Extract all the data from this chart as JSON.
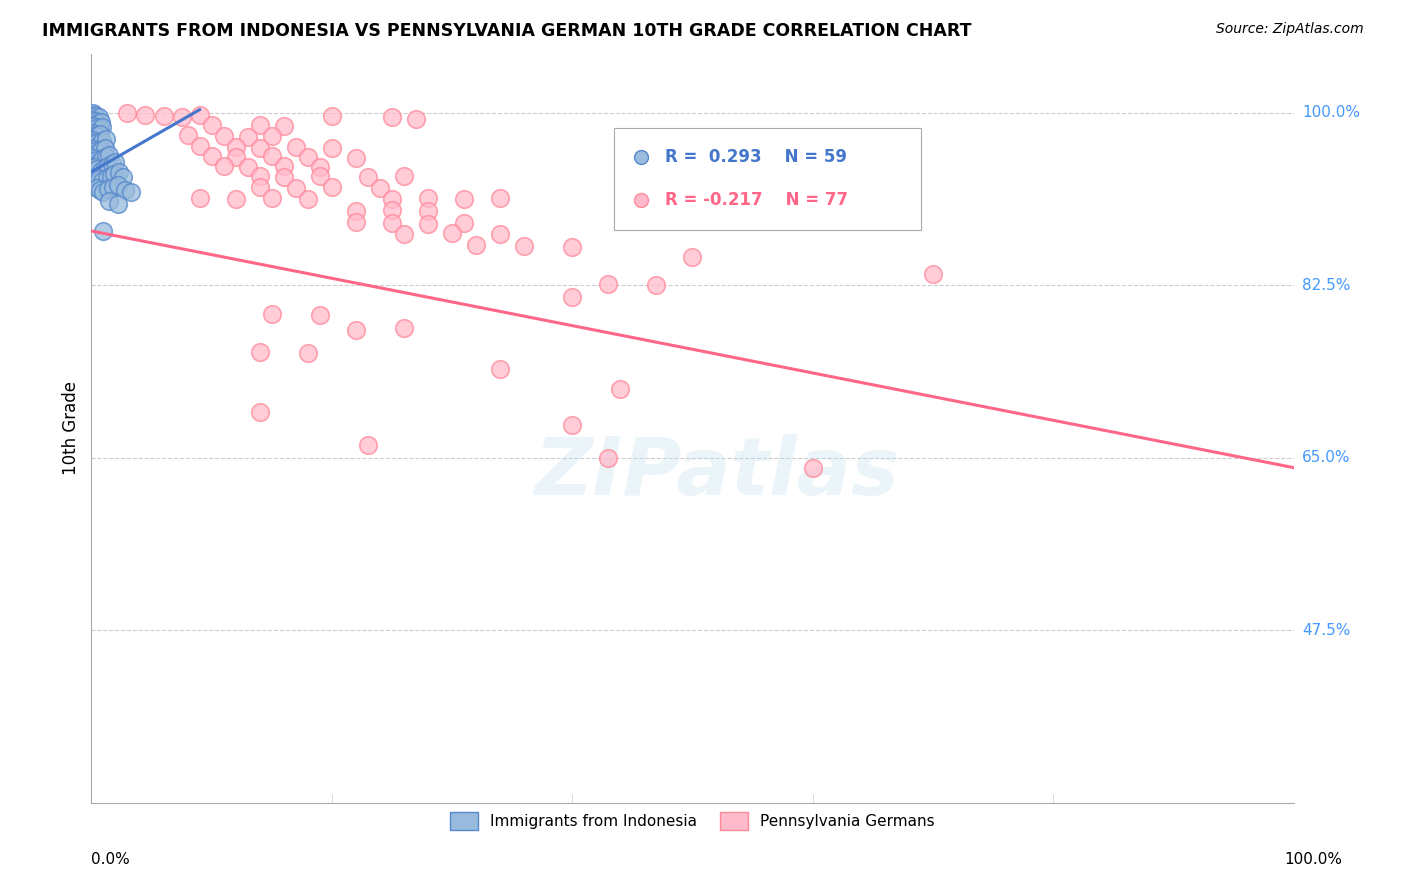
{
  "title": "IMMIGRANTS FROM INDONESIA VS PENNSYLVANIA GERMAN 10TH GRADE CORRELATION CHART",
  "source": "Source: ZipAtlas.com",
  "ylabel": "10th Grade",
  "ytick_labels": [
    "100.0%",
    "82.5%",
    "65.0%",
    "47.5%"
  ],
  "ytick_values": [
    1.0,
    0.825,
    0.65,
    0.475
  ],
  "xlim": [
    0.0,
    1.0
  ],
  "ylim": [
    0.3,
    1.06
  ],
  "color_blue": "#99BBDD",
  "color_blue_edge": "#5588CC",
  "color_pink": "#FFBBCC",
  "color_pink_edge": "#FF8899",
  "color_blue_line": "#4477CC",
  "color_pink_line": "#FF6688",
  "color_grid": "#CCCCCC",
  "color_right_labels": "#4499FF",
  "blue_dots": [
    [
      0.001,
      1.0
    ],
    [
      0.002,
      0.998
    ],
    [
      0.004,
      0.997
    ],
    [
      0.006,
      0.996
    ],
    [
      0.001,
      0.993
    ],
    [
      0.003,
      0.992
    ],
    [
      0.005,
      0.99
    ],
    [
      0.008,
      0.991
    ],
    [
      0.002,
      0.986
    ],
    [
      0.004,
      0.984
    ],
    [
      0.007,
      0.983
    ],
    [
      0.009,
      0.985
    ],
    [
      0.001,
      0.979
    ],
    [
      0.003,
      0.977
    ],
    [
      0.005,
      0.976
    ],
    [
      0.007,
      0.978
    ],
    [
      0.001,
      0.972
    ],
    [
      0.002,
      0.97
    ],
    [
      0.004,
      0.969
    ],
    [
      0.006,
      0.967
    ],
    [
      0.009,
      0.971
    ],
    [
      0.012,
      0.973
    ],
    [
      0.001,
      0.963
    ],
    [
      0.003,
      0.961
    ],
    [
      0.005,
      0.959
    ],
    [
      0.008,
      0.962
    ],
    [
      0.011,
      0.964
    ],
    [
      0.002,
      0.954
    ],
    [
      0.004,
      0.952
    ],
    [
      0.006,
      0.95
    ],
    [
      0.009,
      0.953
    ],
    [
      0.012,
      0.955
    ],
    [
      0.015,
      0.957
    ],
    [
      0.003,
      0.945
    ],
    [
      0.005,
      0.943
    ],
    [
      0.008,
      0.941
    ],
    [
      0.011,
      0.944
    ],
    [
      0.014,
      0.946
    ],
    [
      0.017,
      0.948
    ],
    [
      0.02,
      0.95
    ],
    [
      0.004,
      0.935
    ],
    [
      0.006,
      0.933
    ],
    [
      0.009,
      0.931
    ],
    [
      0.013,
      0.934
    ],
    [
      0.016,
      0.936
    ],
    [
      0.019,
      0.938
    ],
    [
      0.023,
      0.94
    ],
    [
      0.026,
      0.935
    ],
    [
      0.005,
      0.924
    ],
    [
      0.007,
      0.922
    ],
    [
      0.01,
      0.92
    ],
    [
      0.014,
      0.923
    ],
    [
      0.018,
      0.925
    ],
    [
      0.022,
      0.927
    ],
    [
      0.028,
      0.922
    ],
    [
      0.033,
      0.92
    ],
    [
      0.015,
      0.91
    ],
    [
      0.022,
      0.907
    ],
    [
      0.01,
      0.88
    ]
  ],
  "pink_dots": [
    [
      0.03,
      1.0
    ],
    [
      0.045,
      0.998
    ],
    [
      0.06,
      0.997
    ],
    [
      0.075,
      0.996
    ],
    [
      0.09,
      0.998
    ],
    [
      0.2,
      0.997
    ],
    [
      0.25,
      0.996
    ],
    [
      0.27,
      0.994
    ],
    [
      0.1,
      0.988
    ],
    [
      0.14,
      0.987
    ],
    [
      0.16,
      0.986
    ],
    [
      0.08,
      0.977
    ],
    [
      0.11,
      0.976
    ],
    [
      0.13,
      0.975
    ],
    [
      0.15,
      0.976
    ],
    [
      0.09,
      0.966
    ],
    [
      0.12,
      0.965
    ],
    [
      0.14,
      0.964
    ],
    [
      0.17,
      0.965
    ],
    [
      0.2,
      0.964
    ],
    [
      0.1,
      0.956
    ],
    [
      0.12,
      0.955
    ],
    [
      0.15,
      0.956
    ],
    [
      0.18,
      0.955
    ],
    [
      0.22,
      0.954
    ],
    [
      0.11,
      0.946
    ],
    [
      0.13,
      0.945
    ],
    [
      0.16,
      0.946
    ],
    [
      0.19,
      0.945
    ],
    [
      0.14,
      0.936
    ],
    [
      0.16,
      0.935
    ],
    [
      0.19,
      0.936
    ],
    [
      0.23,
      0.935
    ],
    [
      0.26,
      0.936
    ],
    [
      0.14,
      0.925
    ],
    [
      0.17,
      0.924
    ],
    [
      0.2,
      0.925
    ],
    [
      0.24,
      0.924
    ],
    [
      0.09,
      0.913
    ],
    [
      0.12,
      0.912
    ],
    [
      0.15,
      0.913
    ],
    [
      0.18,
      0.912
    ],
    [
      0.25,
      0.912
    ],
    [
      0.28,
      0.913
    ],
    [
      0.31,
      0.912
    ],
    [
      0.34,
      0.913
    ],
    [
      0.22,
      0.9
    ],
    [
      0.25,
      0.901
    ],
    [
      0.28,
      0.9
    ],
    [
      0.22,
      0.889
    ],
    [
      0.25,
      0.888
    ],
    [
      0.28,
      0.887
    ],
    [
      0.31,
      0.888
    ],
    [
      0.26,
      0.877
    ],
    [
      0.3,
      0.878
    ],
    [
      0.34,
      0.877
    ],
    [
      0.32,
      0.866
    ],
    [
      0.36,
      0.865
    ],
    [
      0.4,
      0.864
    ],
    [
      0.5,
      0.854
    ],
    [
      0.7,
      0.836
    ],
    [
      0.43,
      0.826
    ],
    [
      0.47,
      0.825
    ],
    [
      0.4,
      0.813
    ],
    [
      0.15,
      0.796
    ],
    [
      0.19,
      0.795
    ],
    [
      0.22,
      0.78
    ],
    [
      0.26,
      0.782
    ],
    [
      0.14,
      0.757
    ],
    [
      0.18,
      0.756
    ],
    [
      0.34,
      0.74
    ],
    [
      0.44,
      0.72
    ],
    [
      0.14,
      0.696
    ],
    [
      0.4,
      0.683
    ],
    [
      0.23,
      0.663
    ],
    [
      0.43,
      0.65
    ],
    [
      0.6,
      0.64
    ]
  ],
  "blue_line_x": [
    0.0,
    0.09
  ],
  "blue_line_y": [
    0.94,
    1.003
  ],
  "pink_line_x": [
    0.0,
    1.0
  ],
  "pink_line_y": [
    0.88,
    0.64
  ]
}
